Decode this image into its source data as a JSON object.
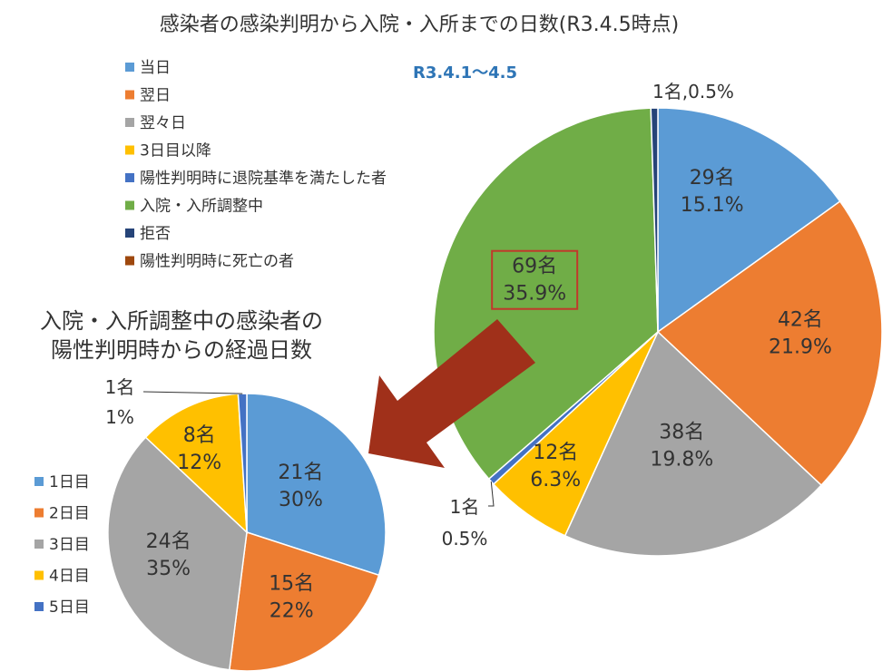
{
  "chart_data": [
    {
      "type": "pie",
      "title": "感染者の感染判明から入院・入所までの日数(R3.4.5時点)",
      "subtitle": "R3.4.1〜4.5",
      "legend_position": "top-left",
      "slices": [
        {
          "name": "当日",
          "count": 29,
          "count_label": "29名",
          "percent_label": "15.1%",
          "percent": 15.1,
          "color": "#5B9BD5"
        },
        {
          "name": "翌日",
          "count": 42,
          "count_label": "42名",
          "percent_label": "21.9%",
          "percent": 21.9,
          "color": "#ED7D31"
        },
        {
          "name": "翌々日",
          "count": 38,
          "count_label": "38名",
          "percent_label": "19.8%",
          "percent": 19.8,
          "color": "#A5A5A5"
        },
        {
          "name": "3日目以降",
          "count": 12,
          "count_label": "12名",
          "percent_label": "6.3%",
          "percent": 6.3,
          "color": "#FFC000"
        },
        {
          "name": "陽性判明時に退院基準を満たした者",
          "count": 1,
          "count_label": "1名",
          "percent_label": "0.5%",
          "percent": 0.5,
          "color": "#4472C4"
        },
        {
          "name": "入院・入所調整中",
          "count": 69,
          "count_label": "69名",
          "percent_label": "35.9%",
          "percent": 35.9,
          "color": "#70AD47",
          "highlighted": true
        },
        {
          "name": "拒否",
          "count": 1,
          "count_label": "1名,0.5%",
          "percent_label": "",
          "percent": 0.5,
          "color": "#264478"
        },
        {
          "name": "陽性判明時に死亡の者",
          "count": 0,
          "count_label": "",
          "percent_label": "",
          "percent": 0,
          "color": "#9E480E"
        }
      ]
    },
    {
      "type": "pie",
      "title": "入院・入所調整中の感染者の\n陽性判明時からの経過日数",
      "legend_position": "left",
      "slices": [
        {
          "name": "1日目",
          "count": 21,
          "count_label": "21名",
          "percent_label": "30%",
          "percent": 30,
          "color": "#5B9BD5"
        },
        {
          "name": "2日目",
          "count": 15,
          "count_label": "15名",
          "percent_label": "22%",
          "percent": 22,
          "color": "#ED7D31"
        },
        {
          "name": "3日目",
          "count": 24,
          "count_label": "24名",
          "percent_label": "35%",
          "percent": 35,
          "color": "#A5A5A5"
        },
        {
          "name": "4日目",
          "count": 8,
          "count_label": "8名",
          "percent_label": "12%",
          "percent": 12,
          "color": "#FFC000"
        },
        {
          "name": "5日目",
          "count": 1,
          "count_label": "1名",
          "percent_label": "1%",
          "percent": 1,
          "color": "#4472C4"
        }
      ]
    }
  ],
  "arrow_color": "#A0301A"
}
